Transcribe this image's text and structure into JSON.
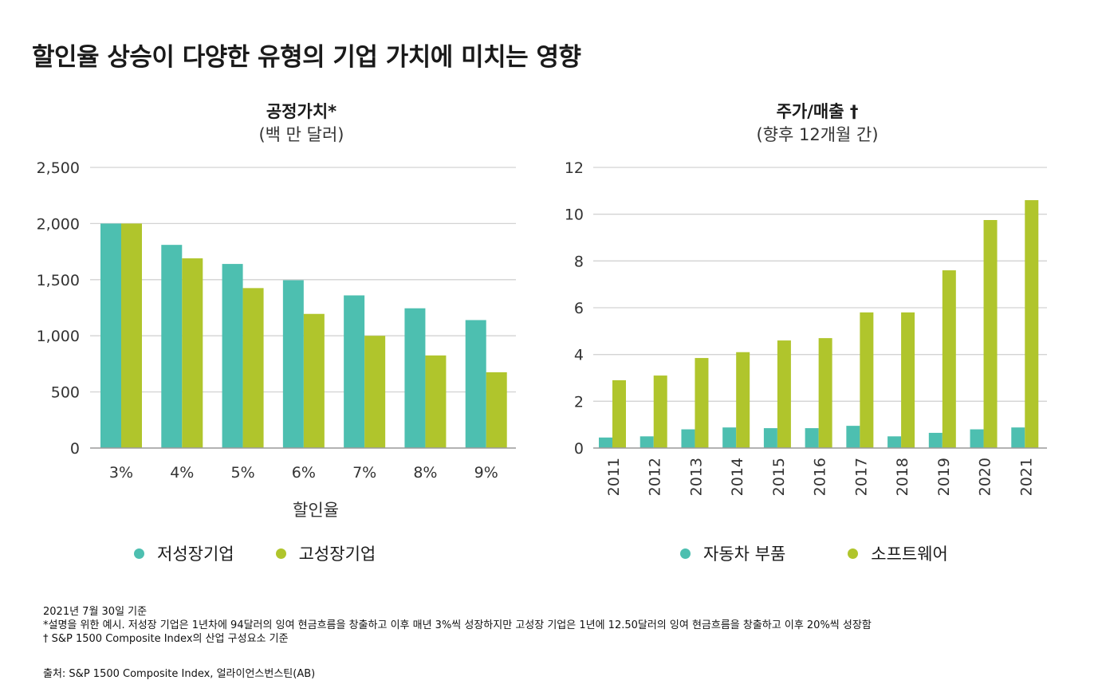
{
  "title": "할인율 상승이 다양한 유형의 기업 가치에 미치는 영향",
  "colors": {
    "teal": "#4dbfb0",
    "lime": "#b0c52c",
    "grid": "#d3d3d3",
    "axis": "#9a9a9a"
  },
  "left_chart": {
    "title": "공정가치*",
    "subtitle": "(백 만 달러)",
    "legend": [
      "저성장기업",
      "고성장기업"
    ]
  },
  "right_chart": {
    "title": "주가/매출 †",
    "subtitle": "(향후 12개월 간)",
    "legend": [
      "자동차 부품",
      "소프트웨어"
    ]
  },
  "chart_data": [
    {
      "type": "bar",
      "title": "공정가치*",
      "subtitle": "(백 만 달러)",
      "xlabel": "할인율",
      "ylabel": "",
      "categories": [
        "3%",
        "4%",
        "5%",
        "6%",
        "7%",
        "8%",
        "9%"
      ],
      "series": [
        {
          "name": "저성장기업",
          "values": [
            2000,
            1810,
            1640,
            1495,
            1360,
            1245,
            1140
          ]
        },
        {
          "name": "고성장기업",
          "values": [
            2000,
            1690,
            1425,
            1195,
            1000,
            825,
            675
          ]
        }
      ],
      "ylim": [
        0,
        2500
      ],
      "yticks": [
        "0",
        "500",
        "1,000",
        "1,500",
        "2,000",
        "2,500"
      ],
      "ytick_values": [
        0,
        500,
        1000,
        1500,
        2000,
        2500
      ],
      "grid": true,
      "legend_position": "bottom"
    },
    {
      "type": "bar",
      "title": "주가/매출 †",
      "subtitle": "(향후 12개월 간)",
      "xlabel": "",
      "ylabel": "",
      "categories": [
        "2011",
        "2012",
        "2013",
        "2014",
        "2015",
        "2016",
        "2017",
        "2018",
        "2019",
        "2020",
        "2021"
      ],
      "series": [
        {
          "name": "자동차 부품",
          "values": [
            0.45,
            0.5,
            0.8,
            0.88,
            0.85,
            0.85,
            0.95,
            0.5,
            0.65,
            0.8,
            0.88
          ]
        },
        {
          "name": "소프트웨어",
          "values": [
            2.9,
            3.1,
            3.85,
            4.1,
            4.6,
            4.7,
            5.8,
            5.8,
            7.6,
            9.75,
            10.6
          ]
        }
      ],
      "ylim": [
        0,
        12
      ],
      "yticks": [
        "0",
        "2",
        "4",
        "6",
        "8",
        "10",
        "12"
      ],
      "ytick_values": [
        0,
        2,
        4,
        6,
        8,
        10,
        12
      ],
      "grid": true,
      "legend_position": "bottom"
    }
  ],
  "footnotes": [
    "2021년 7월 30일 기준",
    "*설명을 위한 예시. 저성장 기업은 1년차에 94달러의 잉여 현금흐름을 창출하고 이후 매년 3%씩 성장하지만 고성장 기업은 1년에 12.50달러의 잉여 현금흐름을 창출하고 이후 20%씩 성장함",
    "† S&P 1500 Composite Index의 산업 구성요소 기준"
  ],
  "source": "출처: S&P 1500 Composite Index, 얼라이언스번스틴(AB)"
}
